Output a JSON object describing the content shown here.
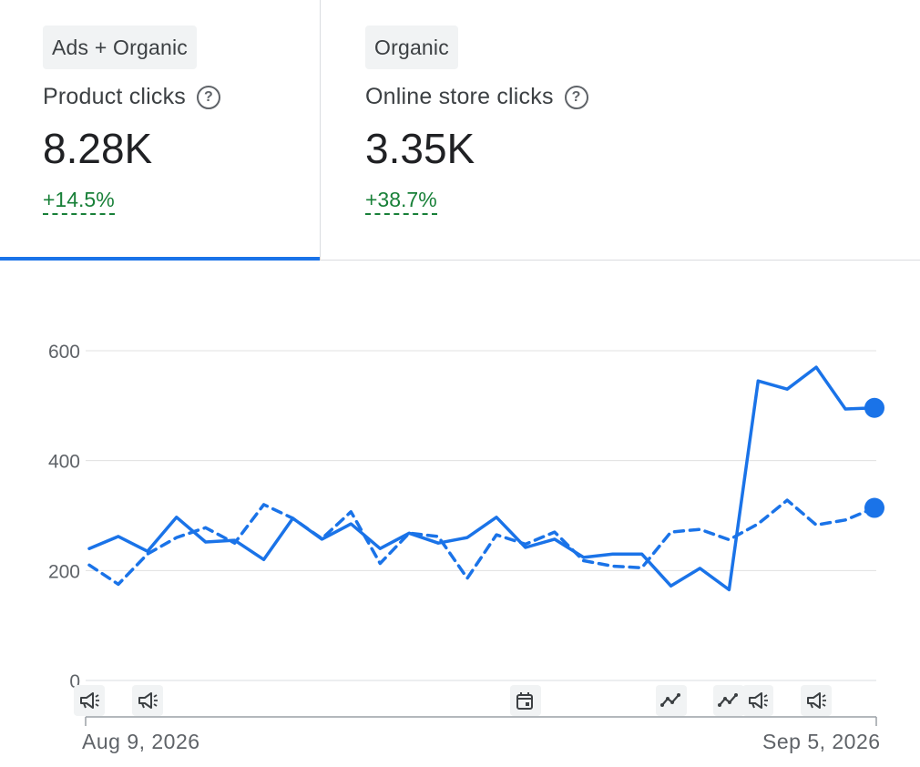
{
  "cards": [
    {
      "chip": "Ads + Organic",
      "label": "Product clicks",
      "value": "8.28K",
      "change": "+14.5%"
    },
    {
      "chip": "Organic",
      "label": "Online store clicks",
      "value": "3.35K",
      "change": "+38.7%"
    }
  ],
  "colors": {
    "accent": "#1a73e8",
    "positive": "#188038",
    "grid": "#e0e0e0"
  },
  "chart_data": {
    "type": "line",
    "x_start": "Aug 9, 2026",
    "x_end": "Sep 5, 2026",
    "x_tick_labels": [
      "Aug 9, 2026",
      "Sep 5, 2026"
    ],
    "y_ticks": [
      0,
      200,
      400,
      600
    ],
    "ylim": [
      0,
      600
    ],
    "grid": true,
    "series": [
      {
        "style": "solid",
        "values": [
          240,
          262,
          235,
          297,
          252,
          255,
          220,
          295,
          257,
          285,
          240,
          268,
          250,
          260,
          297,
          242,
          257,
          224,
          230,
          230,
          172,
          204,
          165,
          545,
          530,
          570,
          494,
          496
        ]
      },
      {
        "style": "dashed",
        "values": [
          210,
          175,
          230,
          260,
          278,
          250,
          320,
          295,
          258,
          307,
          213,
          268,
          262,
          186,
          265,
          248,
          270,
          218,
          208,
          205,
          270,
          275,
          256,
          285,
          328,
          283,
          292,
          314
        ]
      }
    ],
    "events": [
      {
        "day": 0,
        "icons": [
          "megaphone-icon"
        ]
      },
      {
        "day": 2,
        "icons": [
          "megaphone-icon"
        ]
      },
      {
        "day": 15,
        "icons": [
          "calendar-icon"
        ]
      },
      {
        "day": 20,
        "icons": [
          "trend-icon"
        ]
      },
      {
        "day": 22,
        "icons": [
          "trend-icon",
          "megaphone-icon"
        ]
      },
      {
        "day": 25,
        "icons": [
          "megaphone-icon"
        ]
      }
    ]
  }
}
